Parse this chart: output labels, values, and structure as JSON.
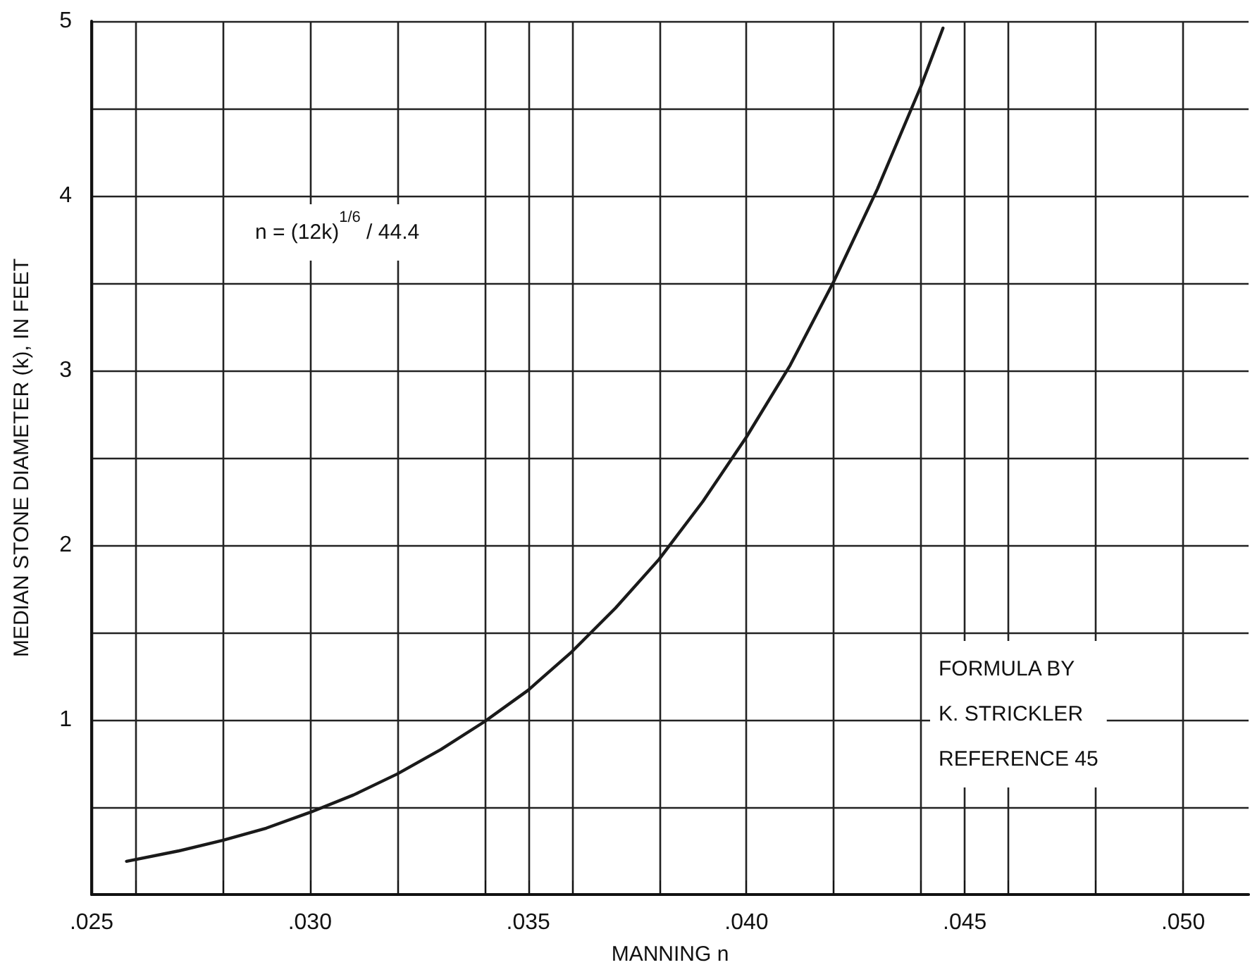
{
  "chart_data": {
    "type": "line",
    "xlabel": "MANNING n",
    "ylabel": "MEDIAN STONE DIAMETER (k), IN FEET",
    "x": [
      0.0258,
      0.027,
      0.028,
      0.029,
      0.03,
      0.031,
      0.032,
      0.033,
      0.034,
      0.035,
      0.036,
      0.037,
      0.038,
      0.039,
      0.04,
      0.041,
      0.042,
      0.043,
      0.044,
      0.0445
    ],
    "series": [
      {
        "color": "#1a1a1a",
        "values": [
          0.19,
          0.25,
          0.31,
          0.38,
          0.47,
          0.57,
          0.69,
          0.83,
          0.99,
          1.17,
          1.39,
          1.64,
          1.92,
          2.25,
          2.62,
          3.03,
          3.51,
          4.04,
          4.63,
          4.96
        ]
      }
    ],
    "xlim": [
      0.025,
      0.0515
    ],
    "xticks": [
      {
        "value": 0.025,
        "label": ".025"
      },
      {
        "value": 0.026,
        "label": null
      },
      {
        "value": 0.028,
        "label": null
      },
      {
        "value": 0.03,
        "label": ".030"
      },
      {
        "value": 0.032,
        "label": null
      },
      {
        "value": 0.034,
        "label": null
      },
      {
        "value": 0.035,
        "label": ".035"
      },
      {
        "value": 0.036,
        "label": null
      },
      {
        "value": 0.038,
        "label": null
      },
      {
        "value": 0.04,
        "label": ".040"
      },
      {
        "value": 0.042,
        "label": null
      },
      {
        "value": 0.044,
        "label": null
      },
      {
        "value": 0.045,
        "label": ".045"
      },
      {
        "value": 0.046,
        "label": null
      },
      {
        "value": 0.048,
        "label": null
      },
      {
        "value": 0.05,
        "label": ".050"
      }
    ],
    "ylim": [
      0,
      5
    ],
    "yticks": [
      {
        "value": 0.5,
        "label": null
      },
      1,
      {
        "value": 1.5,
        "label": null
      },
      2,
      {
        "value": 2.5,
        "label": null
      },
      3,
      {
        "value": 3.5,
        "label": null
      },
      4,
      {
        "value": 4.5,
        "label": null
      },
      5
    ],
    "grid": true,
    "marker": "none",
    "line_style": "solid",
    "annotations": [
      "n = (12k)$^{1/6}$ / 44.4",
      "FORMULA BY\nK. STRICKLER\nREFERENCE 45"
    ]
  }
}
